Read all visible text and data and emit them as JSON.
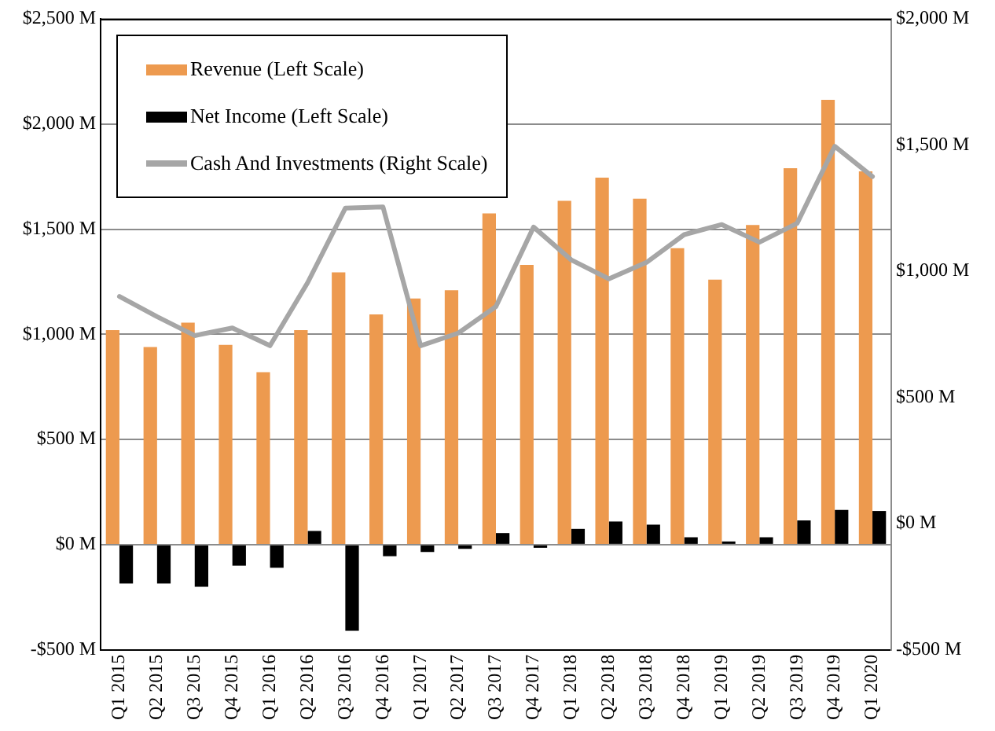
{
  "chart_data": {
    "type": "bar",
    "categories": [
      "Q1 2015",
      "Q2 2015",
      "Q3 2015",
      "Q4 2015",
      "Q1 2016",
      "Q2 2016",
      "Q3 2016",
      "Q4 2016",
      "Q1 2017",
      "Q2 2017",
      "Q3 2017",
      "Q4 2017",
      "Q1 2018",
      "Q2 2018",
      "Q3 2018",
      "Q4 2018",
      "Q1 2019",
      "Q2 2019",
      "Q3 2019",
      "Q4 2019",
      "Q1 2020"
    ],
    "series": [
      {
        "name": "Revenue (Left Scale)",
        "color": "#ed9a4f",
        "values": [
          1020,
          940,
          1055,
          950,
          820,
          1020,
          1295,
          1095,
          1170,
          1210,
          1575,
          1330,
          1635,
          1745,
          1645,
          1410,
          1260,
          1520,
          1790,
          2115,
          1775
        ]
      },
      {
        "name": "Net Income (Left Scale)",
        "color": "#000000",
        "values": [
          -185,
          -185,
          -200,
          -100,
          -110,
          65,
          -410,
          -55,
          -35,
          -20,
          55,
          -15,
          75,
          110,
          95,
          35,
          15,
          35,
          115,
          165,
          160
        ]
      },
      {
        "name": "Cash And Investments (Right Scale)",
        "type": "line",
        "axis": "y2",
        "color": "#a6a6a6",
        "values": [
          900,
          820,
          745,
          775,
          705,
          955,
          1250,
          1255,
          705,
          755,
          860,
          1175,
          1045,
          970,
          1035,
          1145,
          1185,
          1115,
          1190,
          1495,
          1375
        ]
      }
    ],
    "ylim": [
      -500,
      2500
    ],
    "yticks": [
      {
        "value": -500,
        "label": "-$500 M"
      },
      {
        "value": 0,
        "label": "$0 M"
      },
      {
        "value": 500,
        "label": "$500 M"
      },
      {
        "value": 1000,
        "label": "$1,000 M"
      },
      {
        "value": 1500,
        "label": "$1,500 M"
      },
      {
        "value": 2000,
        "label": "$2,000 M"
      },
      {
        "value": 2500,
        "label": "$2,500 M"
      }
    ],
    "y2lim": [
      -500,
      2000
    ],
    "y2ticks": [
      {
        "value": -500,
        "label": "-$500 M"
      },
      {
        "value": 0,
        "label": "$0 M"
      },
      {
        "value": 500,
        "label": "$500 M"
      },
      {
        "value": 1000,
        "label": "$1,000 M"
      },
      {
        "value": 1500,
        "label": "$1,500 M"
      },
      {
        "value": 2000,
        "label": "$2,000 M"
      }
    ],
    "grid": "y",
    "legend": "top left",
    "marker": "none",
    "line_style": "solid"
  }
}
